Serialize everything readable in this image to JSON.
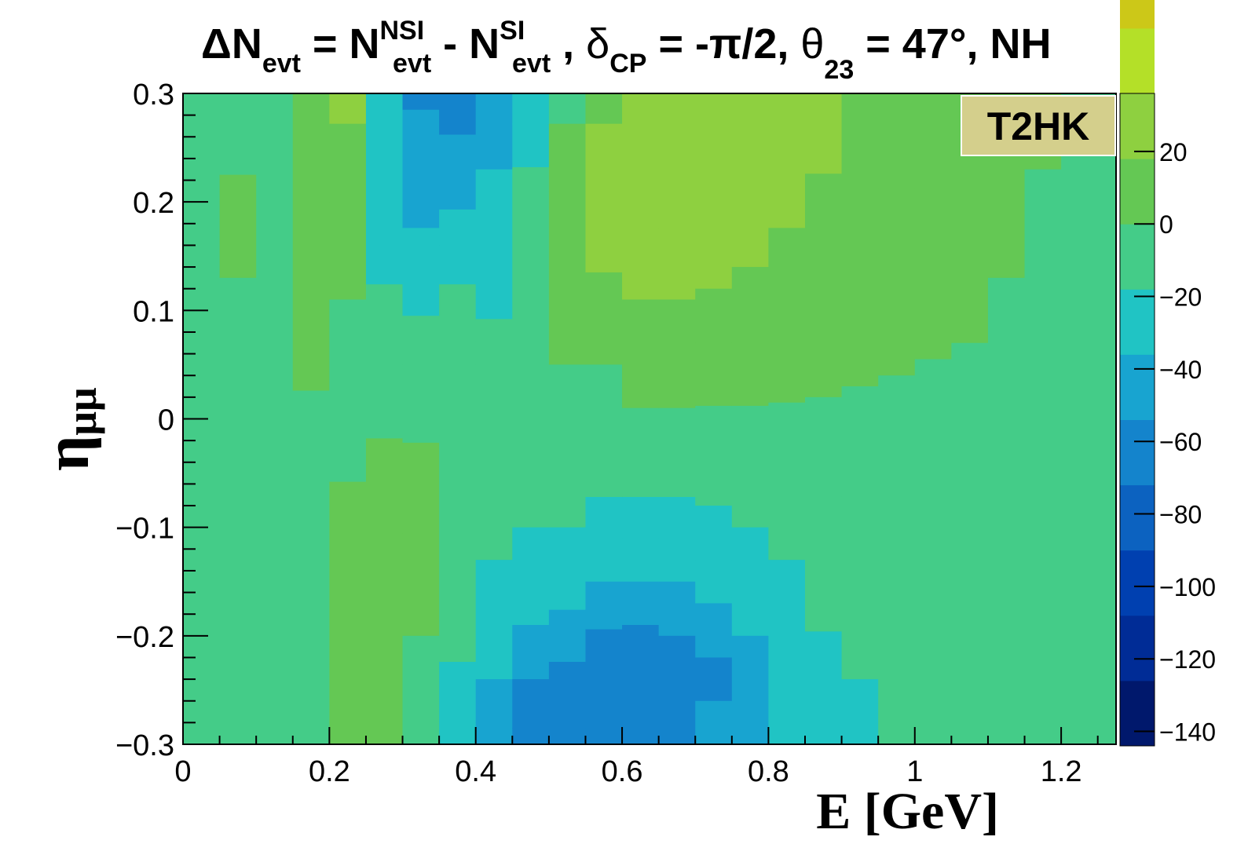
{
  "title": {
    "delta_symbol": "Δ",
    "n": "N",
    "evt": "evt",
    "equals": " = ",
    "nsi": "NSI",
    "minus": " - ",
    "si": "SI",
    "comma": " ,  ",
    "delta_small": "δ",
    "cp": "CP",
    "dcp_value": " = -π/2,  ",
    "theta": "θ",
    "theta_sub": "23",
    "theta_value": " = 47°, NH"
  },
  "experiment_label": "T2HK",
  "chart_data": {
    "type": "heatmap",
    "xlabel": "E [GeV]",
    "ylabel_symbol": "η",
    "ylabel_sub": "μμ",
    "xlim": [
      0,
      1.275
    ],
    "ylim": [
      -0.3,
      0.3
    ],
    "x_ticks": [
      0,
      0.2,
      0.4,
      0.6,
      0.8,
      1,
      1.2
    ],
    "x_tick_labels": [
      "0",
      "0.2",
      "0.4",
      "0.6",
      "0.8",
      "1",
      "1.2"
    ],
    "y_ticks": [
      0.3,
      0.2,
      0.1,
      0,
      -0.1,
      -0.2,
      -0.3
    ],
    "y_tick_labels": [
      "0.3",
      "0.2",
      "0.1",
      "0",
      "−0.1",
      "−0.2",
      "−0.3"
    ],
    "colorbar": {
      "range": [
        -144,
        36
      ],
      "step": 18,
      "ticks": [
        20,
        0,
        -20,
        -40,
        -60,
        -80,
        -100,
        -120,
        -140
      ],
      "tick_labels": [
        "20",
        "0",
        "−20",
        "−40",
        "−60",
        "−80",
        "−100",
        "−120",
        "−140"
      ],
      "colors": [
        "#00186c",
        "#002c96",
        "#0040b0",
        "#0c62c0",
        "#1484cc",
        "#18a4d0",
        "#20c4c4",
        "#44cc88",
        "#64c854",
        "#8ed040",
        "#b4e028",
        "#ccc818",
        "#d89818",
        "#d46414",
        "#cc4610",
        "#d02c10",
        "#bc1008",
        "#960804",
        "#700000"
      ]
    },
    "x_edges": [
      0,
      0.05,
      0.1,
      0.15,
      0.2,
      0.25,
      0.3,
      0.35,
      0.4,
      0.45,
      0.5,
      0.55,
      0.6,
      0.65,
      0.7,
      0.75,
      0.8,
      0.85,
      0.9,
      0.95,
      1.0,
      1.05,
      1.1,
      1.15,
      1.2,
      1.275
    ],
    "columns": [
      {
        "x": 0.025,
        "segments": [
          [
            0.3,
            0.001,
            -8
          ],
          [
            0.001,
            -0.3,
            -5
          ]
        ]
      },
      {
        "x": 0.075,
        "segments": [
          [
            0.3,
            0.225,
            -5
          ],
          [
            0.225,
            0.13,
            5
          ],
          [
            0.13,
            -0.001,
            -5
          ],
          [
            -0.001,
            -0.3,
            -5
          ]
        ]
      },
      {
        "x": 0.125,
        "segments": [
          [
            0.3,
            0.001,
            -5
          ],
          [
            0.001,
            -0.17,
            -5
          ],
          [
            -0.17,
            -0.3,
            -12
          ]
        ]
      },
      {
        "x": 0.175,
        "segments": [
          [
            0.3,
            0.13,
            15
          ],
          [
            0.13,
            0.026,
            5
          ],
          [
            0.026,
            -0.11,
            -5
          ],
          [
            -0.11,
            -0.3,
            -12
          ]
        ]
      },
      {
        "x": 0.225,
        "segments": [
          [
            0.3,
            0.272,
            25
          ],
          [
            0.272,
            0.2,
            15
          ],
          [
            0.2,
            0.11,
            5
          ],
          [
            0.11,
            -0.058,
            -5
          ],
          [
            -0.058,
            -0.226,
            5
          ],
          [
            -0.226,
            -0.3,
            15
          ]
        ]
      },
      {
        "x": 0.275,
        "segments": [
          [
            0.3,
            0.124,
            -25
          ],
          [
            0.124,
            0.05,
            -15
          ],
          [
            0.05,
            -0.018,
            -5
          ],
          [
            -0.018,
            -0.106,
            5
          ],
          [
            -0.106,
            -0.291,
            15
          ],
          [
            -0.291,
            -0.3,
            5
          ]
        ]
      },
      {
        "x": 0.325,
        "segments": [
          [
            0.3,
            0.285,
            -55
          ],
          [
            0.285,
            0.242,
            -45
          ],
          [
            0.242,
            0.176,
            -38
          ],
          [
            0.176,
            0.135,
            -33
          ],
          [
            0.135,
            0.095,
            -25
          ],
          [
            0.095,
            0.05,
            -15
          ],
          [
            0.05,
            -0.022,
            -5
          ],
          [
            -0.022,
            -0.2,
            5
          ],
          [
            -0.2,
            -0.3,
            -5
          ]
        ]
      },
      {
        "x": 0.375,
        "segments": [
          [
            0.3,
            0.285,
            -65
          ],
          [
            0.285,
            0.262,
            -55
          ],
          [
            0.262,
            0.193,
            -45
          ],
          [
            0.193,
            0.16,
            -33
          ],
          [
            0.16,
            0.124,
            -25
          ],
          [
            0.124,
            0.072,
            -15
          ],
          [
            0.072,
            -0.015,
            -5
          ],
          [
            -0.015,
            -0.186,
            -5
          ],
          [
            -0.186,
            -0.224,
            -15
          ],
          [
            -0.224,
            -0.28,
            -25
          ],
          [
            -0.28,
            -0.3,
            -33
          ]
        ]
      },
      {
        "x": 0.425,
        "segments": [
          [
            0.3,
            0.285,
            -45
          ],
          [
            0.285,
            0.23,
            -38
          ],
          [
            0.23,
            0.176,
            -33
          ],
          [
            0.176,
            0.092,
            -25
          ],
          [
            0.092,
            0.05,
            -15
          ],
          [
            0.05,
            -0.075,
            -5
          ],
          [
            -0.075,
            -0.13,
            -15
          ],
          [
            -0.13,
            -0.196,
            -25
          ],
          [
            -0.196,
            -0.24,
            -33
          ],
          [
            -0.24,
            -0.3,
            -45
          ]
        ]
      },
      {
        "x": 0.475,
        "segments": [
          [
            0.3,
            0.295,
            -33
          ],
          [
            0.295,
            0.272,
            -25
          ],
          [
            0.272,
            0.232,
            -25
          ],
          [
            0.232,
            0.188,
            -15
          ],
          [
            0.188,
            0.07,
            -5
          ],
          [
            0.07,
            -0.05,
            -5
          ],
          [
            -0.05,
            -0.1,
            -15
          ],
          [
            -0.1,
            -0.15,
            -25
          ],
          [
            -0.15,
            -0.19,
            -33
          ],
          [
            -0.19,
            -0.24,
            -45
          ],
          [
            -0.24,
            -0.285,
            -55
          ],
          [
            -0.285,
            -0.3,
            -65
          ]
        ]
      },
      {
        "x": 0.525,
        "segments": [
          [
            0.3,
            0.272,
            -15
          ],
          [
            0.272,
            0.21,
            5
          ],
          [
            0.21,
            0.05,
            5
          ],
          [
            0.05,
            0.001,
            -5
          ],
          [
            0.001,
            -0.05,
            -5
          ],
          [
            -0.05,
            -0.1,
            -15
          ],
          [
            -0.1,
            -0.14,
            -25
          ],
          [
            -0.14,
            -0.176,
            -33
          ],
          [
            -0.176,
            -0.224,
            -45
          ],
          [
            -0.224,
            -0.262,
            -55
          ],
          [
            -0.262,
            -0.3,
            -65
          ]
        ]
      },
      {
        "x": 0.575,
        "segments": [
          [
            0.3,
            0.272,
            15
          ],
          [
            0.272,
            0.23,
            25
          ],
          [
            0.23,
            0.135,
            25
          ],
          [
            0.135,
            0.07,
            15
          ],
          [
            0.07,
            0.05,
            5
          ],
          [
            0.05,
            -0.04,
            -5
          ],
          [
            -0.04,
            -0.072,
            -15
          ],
          [
            -0.072,
            -0.11,
            -25
          ],
          [
            -0.11,
            -0.15,
            -33
          ],
          [
            -0.15,
            -0.194,
            -45
          ],
          [
            -0.194,
            -0.226,
            -55
          ],
          [
            -0.226,
            -0.285,
            -65
          ],
          [
            -0.285,
            -0.3,
            -72
          ]
        ]
      },
      {
        "x": 0.625,
        "segments": [
          [
            0.3,
            0.205,
            35
          ],
          [
            0.205,
            0.11,
            25
          ],
          [
            0.11,
            0.055,
            15
          ],
          [
            0.055,
            0.01,
            5
          ],
          [
            0.01,
            -0.03,
            -5
          ],
          [
            -0.03,
            -0.072,
            -15
          ],
          [
            -0.072,
            -0.11,
            -25
          ],
          [
            -0.11,
            -0.15,
            -33
          ],
          [
            -0.15,
            -0.19,
            -45
          ],
          [
            -0.19,
            -0.24,
            -55
          ],
          [
            -0.24,
            -0.3,
            -65
          ]
        ]
      },
      {
        "x": 0.675,
        "segments": [
          [
            0.3,
            0.176,
            35
          ],
          [
            0.176,
            0.11,
            25
          ],
          [
            0.11,
            0.055,
            15
          ],
          [
            0.055,
            0.01,
            5
          ],
          [
            0.01,
            -0.03,
            -5
          ],
          [
            -0.03,
            -0.072,
            -15
          ],
          [
            -0.072,
            -0.11,
            -25
          ],
          [
            -0.11,
            -0.15,
            -33
          ],
          [
            -0.15,
            -0.2,
            -45
          ],
          [
            -0.2,
            -0.26,
            -55
          ],
          [
            -0.26,
            -0.3,
            -65
          ]
        ]
      },
      {
        "x": 0.725,
        "segments": [
          [
            0.3,
            0.19,
            35
          ],
          [
            0.19,
            0.12,
            25
          ],
          [
            0.12,
            0.07,
            15
          ],
          [
            0.07,
            0.012,
            5
          ],
          [
            0.012,
            -0.04,
            -5
          ],
          [
            -0.04,
            -0.08,
            -15
          ],
          [
            -0.08,
            -0.13,
            -25
          ],
          [
            -0.13,
            -0.17,
            -33
          ],
          [
            -0.17,
            -0.22,
            -45
          ],
          [
            -0.22,
            -0.26,
            -55
          ],
          [
            -0.26,
            -0.3,
            -45
          ]
        ]
      },
      {
        "x": 0.775,
        "segments": [
          [
            0.3,
            0.205,
            35
          ],
          [
            0.205,
            0.14,
            25
          ],
          [
            0.14,
            0.085,
            15
          ],
          [
            0.085,
            0.012,
            5
          ],
          [
            0.012,
            -0.05,
            -5
          ],
          [
            -0.05,
            -0.1,
            -15
          ],
          [
            -0.1,
            -0.165,
            -25
          ],
          [
            -0.165,
            -0.2,
            -33
          ],
          [
            -0.2,
            -0.3,
            -45
          ]
        ]
      },
      {
        "x": 0.825,
        "segments": [
          [
            0.3,
            0.285,
            35
          ],
          [
            0.285,
            0.176,
            25
          ],
          [
            0.176,
            0.094,
            15
          ],
          [
            0.094,
            0.015,
            5
          ],
          [
            0.015,
            -0.056,
            -5
          ],
          [
            -0.056,
            -0.13,
            -15
          ],
          [
            -0.13,
            -0.21,
            -25
          ],
          [
            -0.21,
            -0.3,
            -33
          ]
        ]
      },
      {
        "x": 0.875,
        "segments": [
          [
            0.3,
            0.226,
            25
          ],
          [
            0.226,
            0.092,
            15
          ],
          [
            0.092,
            0.02,
            5
          ],
          [
            0.02,
            -0.072,
            -5
          ],
          [
            -0.072,
            -0.196,
            -15
          ],
          [
            -0.196,
            -0.284,
            -25
          ],
          [
            -0.284,
            -0.3,
            -33
          ]
        ]
      },
      {
        "x": 0.925,
        "segments": [
          [
            0.3,
            0.148,
            15
          ],
          [
            0.148,
            0.03,
            5
          ],
          [
            0.03,
            -0.1,
            -5
          ],
          [
            -0.1,
            -0.24,
            -15
          ],
          [
            -0.24,
            -0.3,
            -25
          ]
        ]
      },
      {
        "x": 0.975,
        "segments": [
          [
            0.3,
            0.212,
            15
          ],
          [
            0.212,
            0.04,
            5
          ],
          [
            0.04,
            -0.13,
            -5
          ],
          [
            -0.13,
            -0.3,
            -15
          ]
        ]
      },
      {
        "x": 1.025,
        "segments": [
          [
            0.3,
            0.26,
            15
          ],
          [
            0.26,
            0.055,
            5
          ],
          [
            0.055,
            -0.13,
            -5
          ],
          [
            -0.13,
            -0.3,
            -15
          ]
        ]
      },
      {
        "x": 1.075,
        "segments": [
          [
            0.3,
            0.29,
            15
          ],
          [
            0.29,
            0.07,
            5
          ],
          [
            0.07,
            -0.18,
            -5
          ],
          [
            -0.18,
            -0.3,
            -15
          ]
        ]
      },
      {
        "x": 1.125,
        "segments": [
          [
            0.3,
            0.29,
            15
          ],
          [
            0.29,
            0.13,
            5
          ],
          [
            0.13,
            -0.3,
            -5
          ]
        ]
      },
      {
        "x": 1.175,
        "segments": [
          [
            0.3,
            0.23,
            5
          ],
          [
            0.23,
            0.1,
            -5
          ],
          [
            0.1,
            -0.3,
            -5
          ]
        ]
      },
      {
        "x": 1.2375,
        "segments": [
          [
            0.3,
            0.23,
            -5
          ],
          [
            0.23,
            -0.3,
            -5
          ]
        ]
      }
    ]
  }
}
